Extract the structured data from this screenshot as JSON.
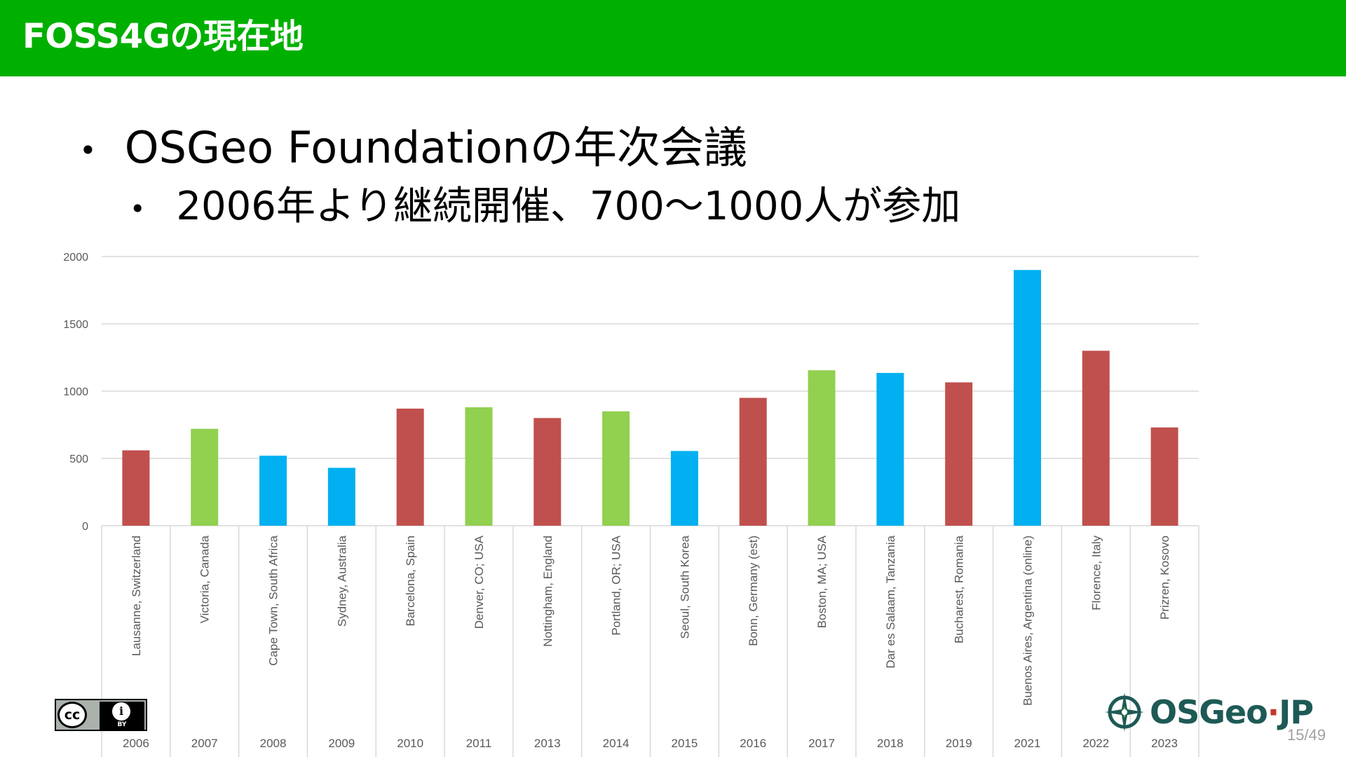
{
  "header": {
    "title": "FOSS4Gの現在地"
  },
  "bullets": {
    "main": "OSGeo Foundationの年次会議",
    "sub": "2006年より継続開催、700〜1000人が参加",
    "dot": "•"
  },
  "colors": {
    "header": "#00b000",
    "red": "#c0504d",
    "green": "#92d050",
    "blue": "#00b0f0"
  },
  "chart_data": {
    "type": "bar",
    "title": "",
    "xlabel": "",
    "ylabel": "",
    "ylim": [
      0,
      2000
    ],
    "yticks": [
      0,
      500,
      1000,
      1500,
      2000
    ],
    "grid": true,
    "legend": "none",
    "categories": [
      {
        "location": "Lausanne, Switzerland",
        "year": "2006",
        "value": 560,
        "color": "red"
      },
      {
        "location": "Victoria, Canada",
        "year": "2007",
        "value": 720,
        "color": "green"
      },
      {
        "location": "Cape Town, South Africa",
        "year": "2008",
        "value": 520,
        "color": "blue"
      },
      {
        "location": "Sydney, Australia",
        "year": "2009",
        "value": 430,
        "color": "blue"
      },
      {
        "location": "Barcelona, Spain",
        "year": "2010",
        "value": 870,
        "color": "red"
      },
      {
        "location": "Denver, CO; USA",
        "year": "2011",
        "value": 880,
        "color": "green"
      },
      {
        "location": "Nottingham, England",
        "year": "2013",
        "value": 800,
        "color": "red"
      },
      {
        "location": "Portland, OR; USA",
        "year": "2014",
        "value": 850,
        "color": "green"
      },
      {
        "location": "Seoul, South Korea",
        "year": "2015",
        "value": 555,
        "color": "blue"
      },
      {
        "location": "Bonn, Germany (est)",
        "year": "2016",
        "value": 950,
        "color": "red"
      },
      {
        "location": "Boston, MA; USA",
        "year": "2017",
        "value": 1155,
        "color": "green"
      },
      {
        "location": "Dar es Salaam, Tanzania",
        "year": "2018",
        "value": 1135,
        "color": "blue"
      },
      {
        "location": "Bucharest, Romania",
        "year": "2019",
        "value": 1065,
        "color": "red"
      },
      {
        "location": "Buenos Aires, Argentina (online)",
        "year": "2021",
        "value": 1900,
        "color": "blue"
      },
      {
        "location": "Florence, Italy",
        "year": "2022",
        "value": 1300,
        "color": "red"
      },
      {
        "location": "Prizren, Kosovo",
        "year": "2023",
        "value": 730,
        "color": "red"
      }
    ]
  },
  "license": {
    "cc": "cc",
    "by_icon": "i",
    "by": "BY",
    "icon": "cc-by-icon"
  },
  "logo": {
    "name_a": "OSGeo",
    "dot": "·",
    "name_b": "JP",
    "icon": "osgeo-compass-icon"
  },
  "page": {
    "number": "15/49"
  }
}
